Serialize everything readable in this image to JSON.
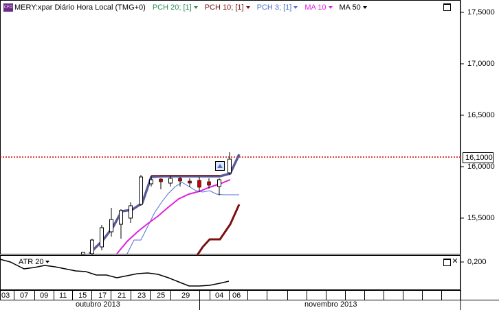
{
  "legend": {
    "badge": "CFD",
    "symbol": "MERY:xpar Diário Hora Local (TMG+0)",
    "indicators": [
      {
        "label": "PCH 20; [1]",
        "color": "#2e8b57"
      },
      {
        "label": "PCH 10; [1]",
        "color": "#7b1010"
      },
      {
        "label": "PCH 3; [1]",
        "color": "#4d6fd0"
      },
      {
        "label": "MA 10",
        "color": "#e020e0"
      },
      {
        "label": "MA 50",
        "color": "#000000"
      }
    ]
  },
  "price_axis": {
    "labels": [
      "17,5000",
      "17,0000",
      "16,5000",
      "16,0000",
      "15,5000"
    ],
    "current_price": "16,1000"
  },
  "atr": {
    "label": "ATR 20",
    "axis_label": "0,200"
  },
  "time_axis": {
    "days": [
      "03",
      "07",
      "09",
      "11",
      "15",
      "17",
      "21",
      "23",
      "25",
      "29",
      "04",
      "06"
    ],
    "months": [
      "outubro 2013",
      "novembro 2013"
    ]
  },
  "colors": {
    "pch20": "#2e8b57",
    "pch10": "#7b1010",
    "pch3": "#4d6fd0",
    "ma10": "#e020e0",
    "ma50": "#000000",
    "current_price_line": "#cc0000"
  }
}
